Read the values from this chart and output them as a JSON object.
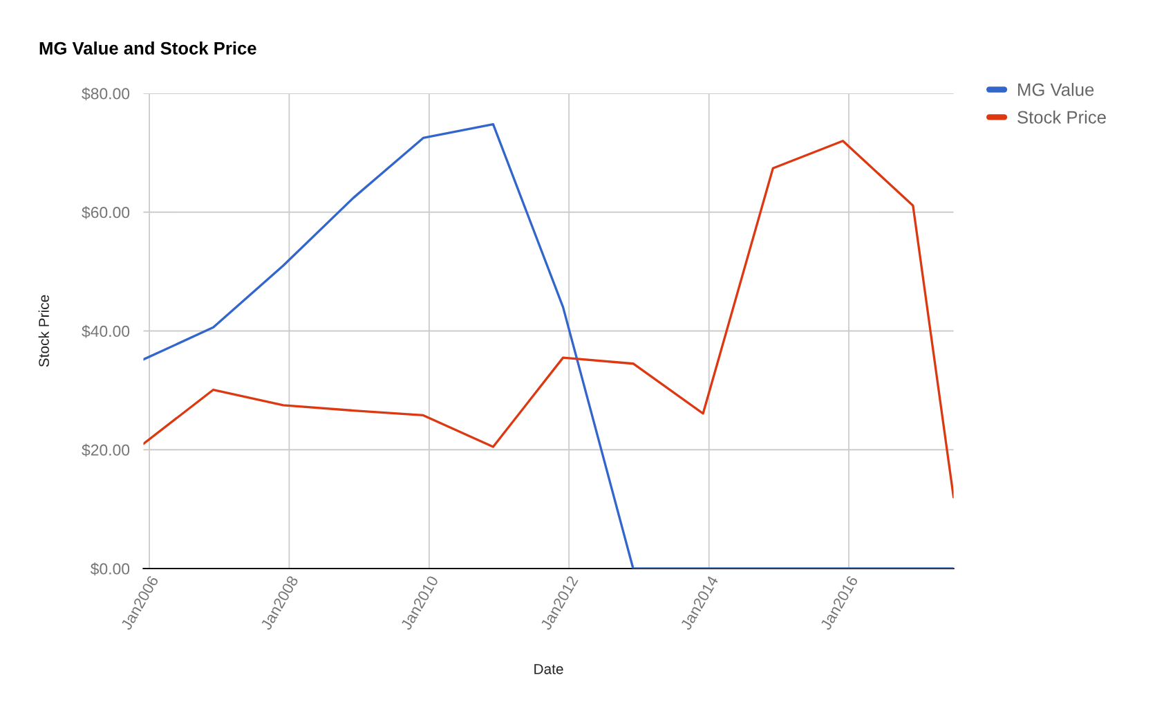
{
  "chart_data": {
    "type": "line",
    "title": "MG Value and Stock Price",
    "xlabel": "Date",
    "ylabel": "Stock Price",
    "x": [
      "2005-12",
      "2006-12",
      "2007-12",
      "2008-12",
      "2009-12",
      "2010-12",
      "2011-12",
      "2012-12",
      "2013-12",
      "2014-12",
      "2015-12",
      "2016-12",
      "2017-07"
    ],
    "series": [
      {
        "name": "MG Value",
        "color": "#3366cc",
        "values": [
          35.2,
          40.6,
          51.0,
          62.4,
          72.5,
          74.8,
          44.0,
          0,
          0,
          0,
          0,
          0,
          0
        ]
      },
      {
        "name": "Stock Price",
        "color": "#dc3912",
        "values": [
          21.0,
          30.1,
          27.5,
          26.6,
          25.8,
          20.5,
          35.5,
          34.5,
          26.1,
          67.4,
          72.0,
          61.1,
          12.0
        ]
      }
    ],
    "xlim": [
      "2005-12",
      "2017-07"
    ],
    "ylim": [
      0,
      80
    ],
    "xticks": [
      {
        "value": "2006-01",
        "label": "Jan2006"
      },
      {
        "value": "2008-01",
        "label": "Jan2008"
      },
      {
        "value": "2010-01",
        "label": "Jan2010"
      },
      {
        "value": "2012-01",
        "label": "Jan2012"
      },
      {
        "value": "2014-01",
        "label": "Jan2014"
      },
      {
        "value": "2016-01",
        "label": "Jan2016"
      }
    ],
    "yticks": [
      {
        "value": 0,
        "label": "$0.00"
      },
      {
        "value": 20,
        "label": "$20.00"
      },
      {
        "value": 40,
        "label": "$40.00"
      },
      {
        "value": 60,
        "label": "$60.00"
      },
      {
        "value": 80,
        "label": "$80.00"
      }
    ],
    "grid": true,
    "legend": "top right",
    "line_style": "solid"
  }
}
